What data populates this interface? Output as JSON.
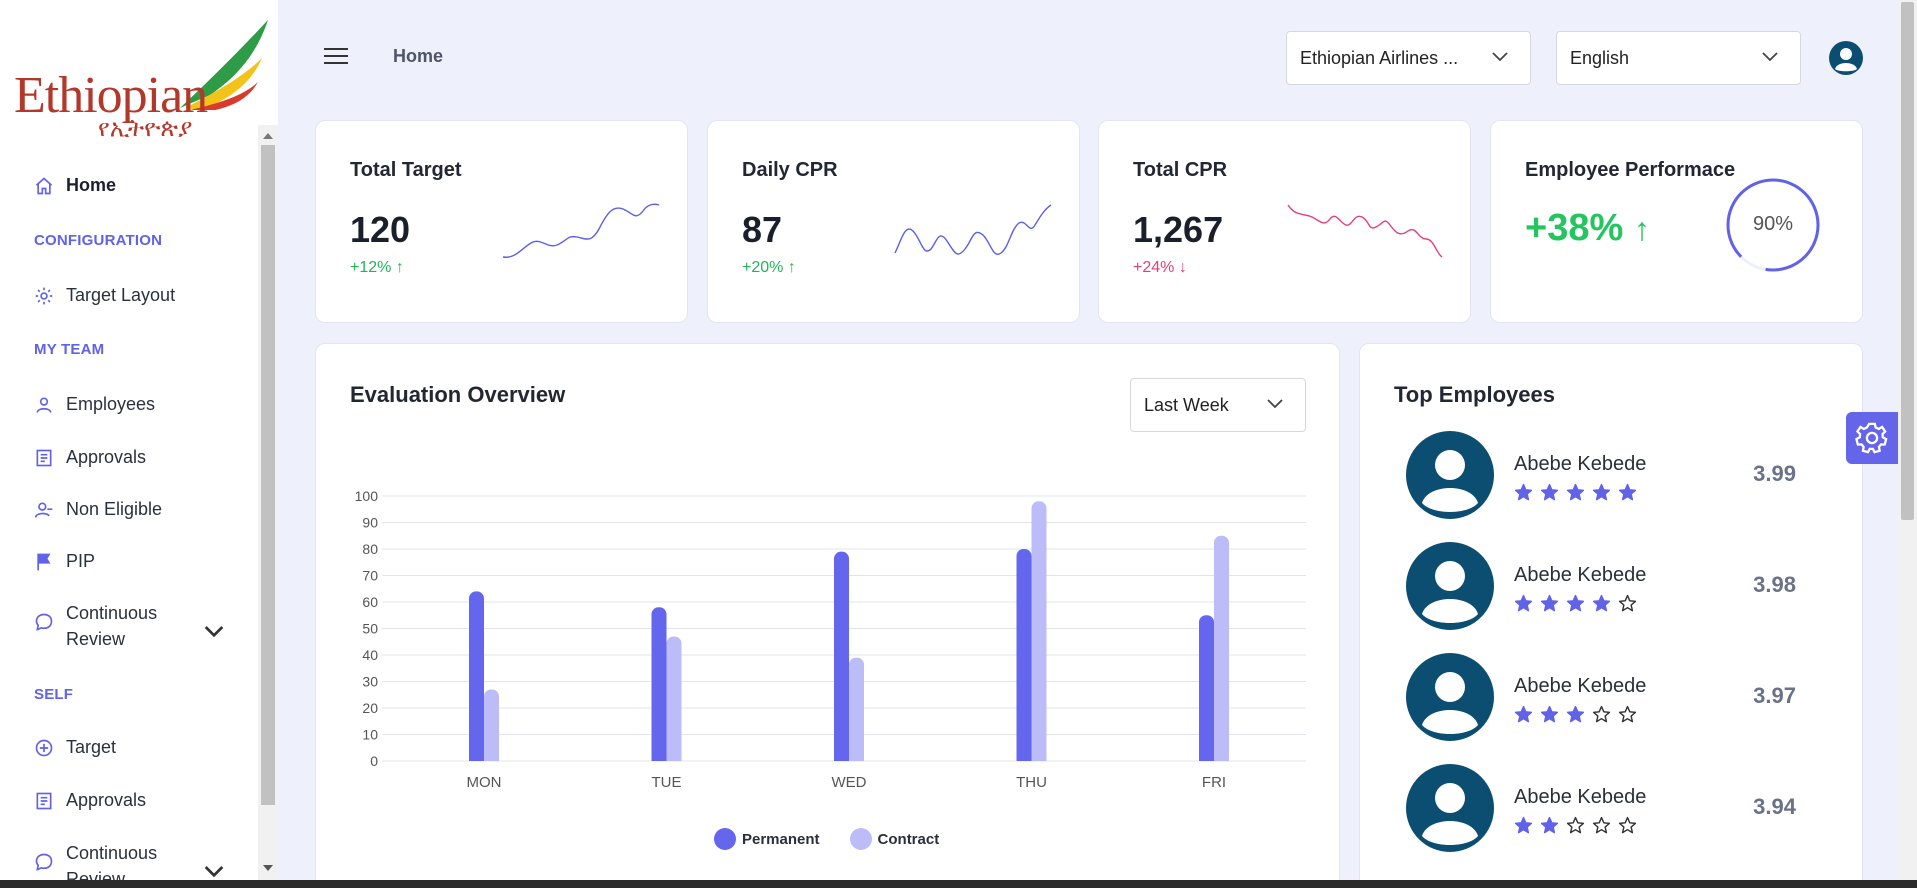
{
  "logo": {
    "text": "Ethiopian",
    "amharic": "የኢትዮጵያ"
  },
  "sidebar": {
    "items": [
      {
        "label": "Home",
        "icon": "home-icon"
      },
      {
        "section": "CONFIGURATION"
      },
      {
        "label": "Target Layout",
        "icon": "gear-icon"
      },
      {
        "section": "MY TEAM"
      },
      {
        "label": "Employees",
        "icon": "user-icon"
      },
      {
        "label": "Approvals",
        "icon": "document-icon"
      },
      {
        "label": "Non Eligible",
        "icon": "user-minus-icon"
      },
      {
        "label": "PIP",
        "icon": "flag-icon"
      },
      {
        "label": "Continuous Review",
        "icon": "chat-icon"
      },
      {
        "section": "SELF"
      },
      {
        "label": "Target",
        "icon": "plus-circle-icon"
      },
      {
        "label": "Approvals",
        "icon": "document-icon"
      },
      {
        "label": "Continuous Review",
        "icon": "chat-icon"
      }
    ]
  },
  "header": {
    "breadcrumb": "Home",
    "org_select": "Ethiopian Airlines ...",
    "language_select": "English"
  },
  "stats": [
    {
      "title": "Total Target",
      "value": "120",
      "delta": "+12%",
      "trend": "up"
    },
    {
      "title": "Daily CPR",
      "value": "87",
      "delta": "+20%",
      "trend": "up"
    },
    {
      "title": "Total CPR",
      "value": "1,267",
      "delta": "+24%",
      "trend": "down"
    },
    {
      "title": "Employee Performace",
      "value": "+38%",
      "gauge_label": "90%",
      "gauge_value": 0.9
    }
  ],
  "evaluation": {
    "title": "Evaluation Overview",
    "period": "Last Week"
  },
  "chart_data": {
    "type": "bar",
    "categories": [
      "MON",
      "TUE",
      "WED",
      "THU",
      "FRI"
    ],
    "series": [
      {
        "name": "Permanent",
        "values": [
          64,
          58,
          79,
          80,
          55
        ],
        "color": "#6566ee"
      },
      {
        "name": "Contract",
        "values": [
          27,
          47,
          39,
          98,
          85
        ],
        "color": "#bcbdf8"
      }
    ],
    "yticks": [
      "0",
      "10",
      "20",
      "30",
      "40",
      "50",
      "60",
      "70",
      "80",
      "90",
      "100"
    ],
    "ylim": [
      0,
      100
    ],
    "grid": true,
    "legend": "bottom-center"
  },
  "top_employees": {
    "title": "Top Employees",
    "list": [
      {
        "name": "Abebe Kebede",
        "rating": 5,
        "score": "3.99"
      },
      {
        "name": "Abebe Kebede",
        "rating": 4,
        "score": "3.98"
      },
      {
        "name": "Abebe Kebede",
        "rating": 3,
        "score": "3.97"
      },
      {
        "name": "Abebe Kebede",
        "rating": 2,
        "score": "3.94"
      }
    ]
  },
  "colors": {
    "accent": "#6062e8",
    "positive": "#22b45a",
    "negative": "#e23d7f",
    "avatar": "#0c4e72"
  }
}
